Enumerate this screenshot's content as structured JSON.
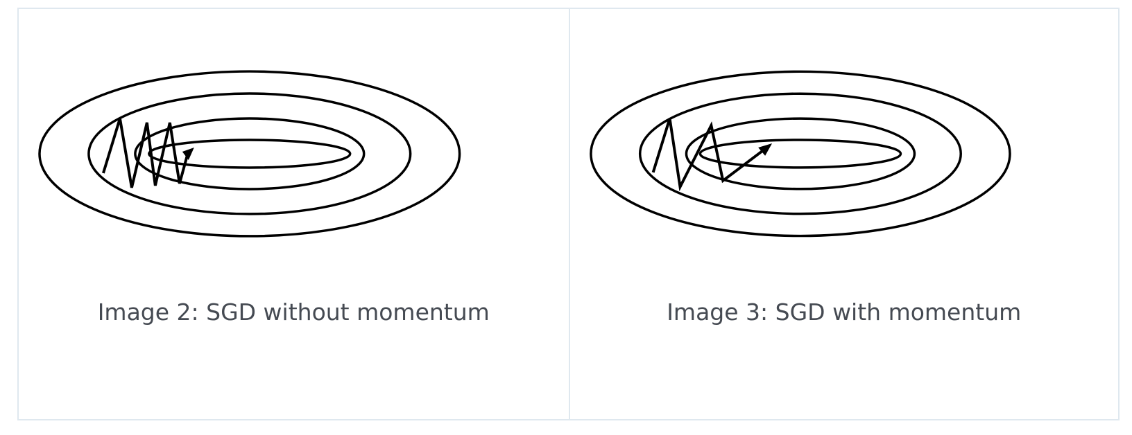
{
  "figures": [
    {
      "caption": "Image 2: SGD without momentum",
      "icon": "zigzag-path-without-momentum"
    },
    {
      "caption": "Image 3: SGD with momentum",
      "icon": "smoother-path-with-momentum"
    }
  ],
  "colors": {
    "border": "#dfe8ef",
    "caption_text": "#454a52",
    "stroke": "#000000"
  }
}
